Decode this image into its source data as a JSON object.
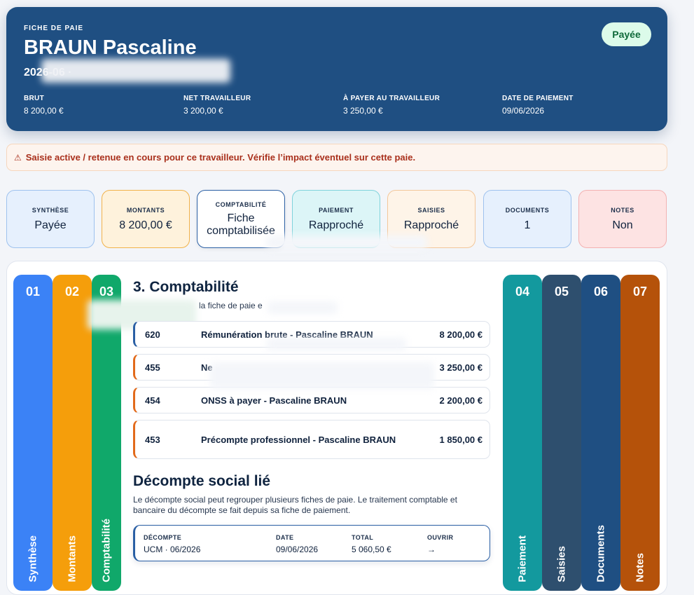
{
  "header": {
    "kicker": "FICHE DE PAIE",
    "name": "BRAUN Pascaline",
    "period": "2026-06 ·",
    "status": "Payée",
    "stats": [
      {
        "label": "BRUT",
        "value": "8 200,00 €"
      },
      {
        "label": "NET TRAVAILLEUR",
        "value": "3 200,00 €"
      },
      {
        "label": "À PAYER AU TRAVAILLEUR",
        "value": "3 250,00 €"
      },
      {
        "label": "DATE DE PAIEMENT",
        "value": "09/06/2026"
      }
    ]
  },
  "alert": {
    "icon": "⚠",
    "text": "Saisie active / retenue en cours pour ce travailleur. Vérifie l’impact éventuel sur cette paie."
  },
  "cards": [
    {
      "label": "SYNTHÈSE",
      "value": "Payée",
      "bg": "#e6f0fd",
      "border": "#9ec2ee"
    },
    {
      "label": "MONTANTS",
      "value": "8 200,00 €",
      "bg": "#fef2dc",
      "border": "#f1b24a"
    },
    {
      "label": "COMPTABILITÉ",
      "value": "Fiche comptabilisée",
      "bg": "#ffffff",
      "border": "#2a5fa4"
    },
    {
      "label": "PAIEMENT",
      "value": "Rapproché",
      "bg": "#dcf5f7",
      "border": "#7fd3dc"
    },
    {
      "label": "SAISIES",
      "value": "Rapproché",
      "bg": "#fef4e8",
      "border": "#f3c79a"
    },
    {
      "label": "DOCUMENTS",
      "value": "1",
      "bg": "#e6f0fd",
      "border": "#9ec2ee"
    },
    {
      "label": "NOTES",
      "value": "Non",
      "bg": "#fde3e3",
      "border": "#f3b1b1"
    }
  ],
  "tabs": [
    {
      "num": "01",
      "label": "Synthèse",
      "color": "#3b82f6"
    },
    {
      "num": "02",
      "label": "Montants",
      "color": "#f59e0b"
    },
    {
      "num": "03",
      "label": "Comptabilité",
      "color": "#10a86a"
    },
    {
      "num": "04",
      "label": "Paiement",
      "color": "#13999e"
    },
    {
      "num": "05",
      "label": "Saisies",
      "color": "#2e4f6e"
    },
    {
      "num": "06",
      "label": "Documents",
      "color": "#1f4f82"
    },
    {
      "num": "07",
      "label": "Notes",
      "color": "#b5520a"
    }
  ],
  "section": {
    "title": "3. Comptabilité",
    "subtitle": "la fiche de paie e",
    "entries": [
      {
        "account": "620",
        "description": "Rémunération brute - Pascaline BRAUN",
        "amount": "8 200,00 €",
        "accent": "#2a5fa4"
      },
      {
        "account": "455",
        "description": "Ne",
        "amount": "3 250,00 €",
        "accent": "#e26a1b"
      },
      {
        "account": "454",
        "description": "ONSS à payer - Pascaline BRAUN",
        "amount": "2 200,00 €",
        "accent": "#e26a1b"
      },
      {
        "account": "453",
        "description": "Précompte professionnel - Pascaline BRAUN",
        "amount": "1 850,00 €",
        "accent": "#e26a1b"
      }
    ]
  },
  "decompte": {
    "title": "Décompte social lié",
    "text": "Le décompte social peut regrouper plusieurs fiches de paie. Le traitement comptable et bancaire du décompte se fait depuis sa fiche de paiement.",
    "columns": [
      {
        "label": "DÉCOMPTE",
        "value": "UCM · 06/2026"
      },
      {
        "label": "DATE",
        "value": "09/06/2026"
      },
      {
        "label": "TOTAL",
        "value": "5 060,50 €"
      },
      {
        "label": "OUVRIR",
        "value": "→"
      }
    ]
  }
}
